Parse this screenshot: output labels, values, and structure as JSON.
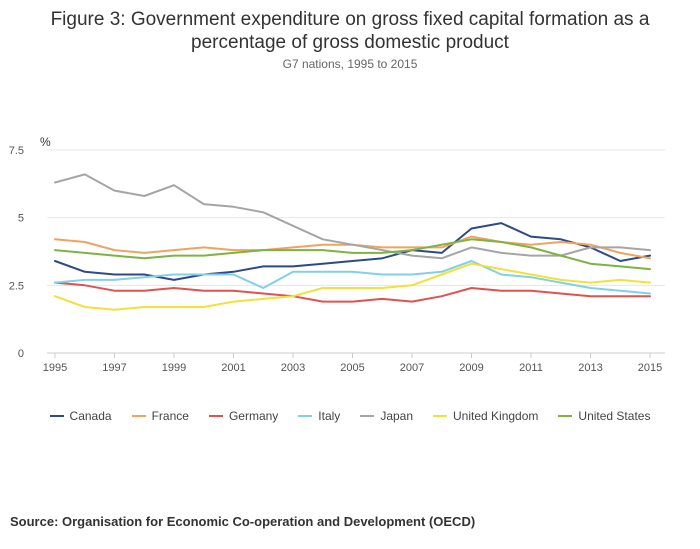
{
  "title_lines": [
    "Figure 3: Government expenditure on gross fixed capital formation as a",
    "percentage of gross domestic product"
  ],
  "subtitle": "G7 nations, 1995 to 2015",
  "source": "Source: Organisation for Economic Co-operation and Development (OECD)",
  "chart_data": {
    "type": "line",
    "title": "Figure 3: Government expenditure on gross fixed capital formation as a percentage of gross domestic product",
    "subtitle": "G7 nations, 1995 to 2015",
    "ylabel": "%",
    "xlabel": "",
    "xlim": [
      1995,
      2015
    ],
    "ylim": [
      0,
      7.5
    ],
    "x_ticks": [
      1995,
      1997,
      1999,
      2001,
      2003,
      2005,
      2007,
      2009,
      2011,
      2013,
      2015
    ],
    "y_ticks": [
      0,
      2.5,
      5,
      7.5
    ],
    "y_tick_labels": [
      "0",
      "2.5",
      "5",
      "7.5"
    ],
    "grid": "horizontal",
    "legend": "bottom",
    "x": [
      1995,
      1996,
      1997,
      1998,
      1999,
      2000,
      2001,
      2002,
      2003,
      2004,
      2005,
      2006,
      2007,
      2008,
      2009,
      2010,
      2011,
      2012,
      2013,
      2014,
      2015
    ],
    "series": [
      {
        "name": "Canada",
        "color": "#2e4a86",
        "values": [
          3.4,
          3.0,
          2.9,
          2.9,
          2.7,
          2.9,
          3.0,
          3.2,
          3.2,
          3.3,
          3.4,
          3.5,
          3.8,
          3.7,
          4.6,
          4.8,
          4.3,
          4.2,
          3.9,
          3.4,
          3.6
        ]
      },
      {
        "name": "France",
        "color": "#f0a35e",
        "values": [
          4.2,
          4.1,
          3.8,
          3.7,
          3.8,
          3.9,
          3.8,
          3.8,
          3.9,
          4.0,
          4.0,
          3.9,
          3.9,
          3.9,
          4.3,
          4.1,
          4.0,
          4.1,
          4.0,
          3.7,
          3.5
        ]
      },
      {
        "name": "Germany",
        "color": "#e0524f",
        "values": [
          2.6,
          2.5,
          2.3,
          2.3,
          2.4,
          2.3,
          2.3,
          2.2,
          2.1,
          1.9,
          1.9,
          2.0,
          1.9,
          2.1,
          2.4,
          2.3,
          2.3,
          2.2,
          2.1,
          2.1,
          2.1
        ]
      },
      {
        "name": "Italy",
        "color": "#82d0e6",
        "values": [
          2.6,
          2.7,
          2.7,
          2.8,
          2.9,
          2.9,
          2.9,
          2.4,
          3.0,
          3.0,
          3.0,
          2.9,
          2.9,
          3.0,
          3.4,
          2.9,
          2.8,
          2.6,
          2.4,
          2.3,
          2.2
        ]
      },
      {
        "name": "Japan",
        "color": "#a5a5a5",
        "values": [
          6.3,
          6.6,
          6.0,
          5.8,
          6.2,
          5.5,
          5.4,
          5.2,
          4.7,
          4.2,
          4.0,
          3.8,
          3.6,
          3.5,
          3.9,
          3.7,
          3.6,
          3.6,
          3.9,
          3.9,
          3.8
        ]
      },
      {
        "name": "United Kingdom",
        "color": "#f0e23a",
        "values": [
          2.1,
          1.7,
          1.6,
          1.7,
          1.7,
          1.7,
          1.9,
          2.0,
          2.1,
          2.4,
          2.4,
          2.4,
          2.5,
          2.9,
          3.3,
          3.1,
          2.9,
          2.7,
          2.6,
          2.7,
          2.6
        ]
      },
      {
        "name": "United States",
        "color": "#7cb342",
        "values": [
          3.8,
          3.7,
          3.6,
          3.5,
          3.6,
          3.6,
          3.7,
          3.8,
          3.8,
          3.8,
          3.7,
          3.7,
          3.8,
          4.0,
          4.2,
          4.1,
          3.9,
          3.6,
          3.3,
          3.2,
          3.1
        ]
      }
    ]
  }
}
